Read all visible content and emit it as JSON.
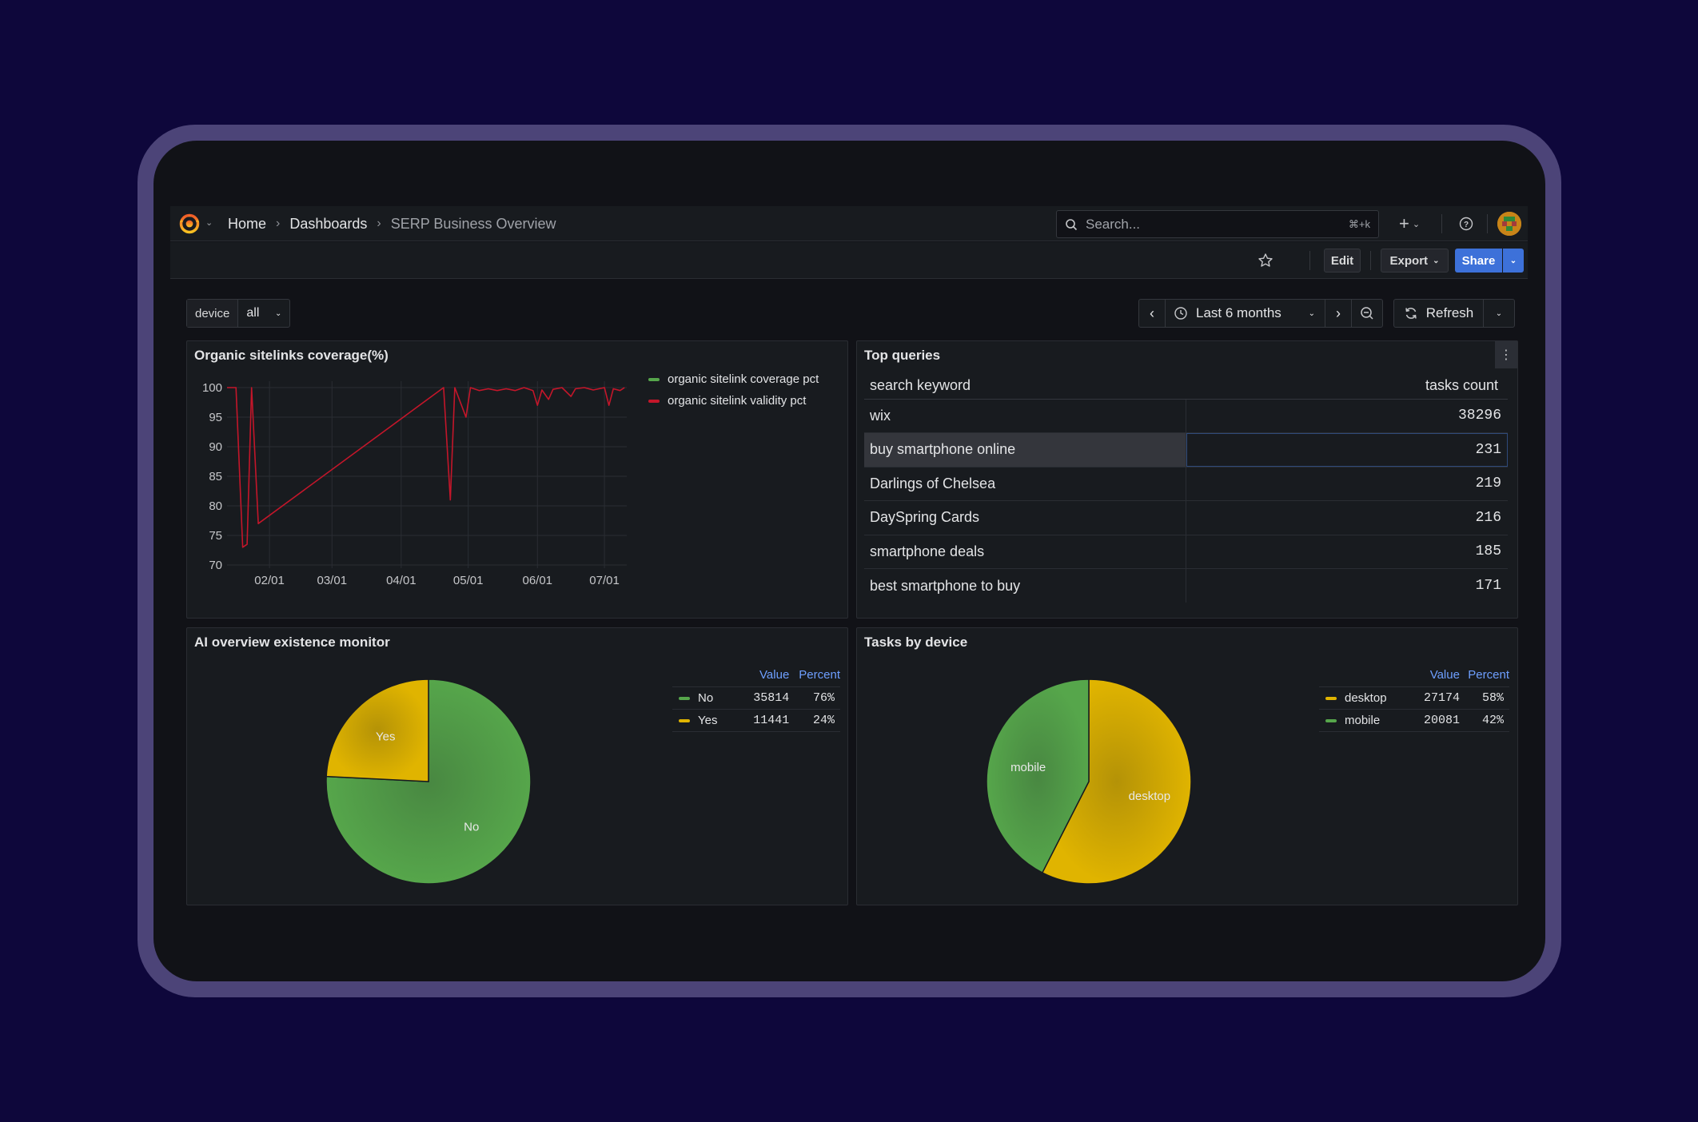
{
  "breadcrumb": {
    "home": "Home",
    "dashboards": "Dashboards",
    "current": "SERP Business Overview"
  },
  "search": {
    "placeholder": "Search...",
    "shortcut": "⌘+k"
  },
  "toolbar": {
    "edit_label": "Edit",
    "export_label": "Export",
    "share_label": "Share"
  },
  "variables": {
    "device_label": "device",
    "device_value": "all"
  },
  "timepicker": {
    "range_label": "Last 6 months",
    "refresh_label": "Refresh"
  },
  "colors": {
    "green": "#56a64b",
    "yellow": "#e0b400",
    "red": "#c4162a",
    "accent": "#3d71d9"
  },
  "panels": {
    "coverage": {
      "title": "Organic sitelinks coverage(%)",
      "legend": [
        "organic sitelink coverage pct",
        "organic sitelink validity pct"
      ]
    },
    "top_queries": {
      "title": "Top queries",
      "columns": [
        "search keyword",
        "tasks count"
      ],
      "rows": [
        {
          "keyword": "wix",
          "count": "38296"
        },
        {
          "keyword": "buy smartphone online",
          "count": "231"
        },
        {
          "keyword": "Darlings of Chelsea",
          "count": "219"
        },
        {
          "keyword": "DaySpring Cards",
          "count": "216"
        },
        {
          "keyword": "smartphone deals",
          "count": "185"
        },
        {
          "keyword": "best smartphone to buy",
          "count": "171"
        }
      ]
    },
    "ai_overview": {
      "title": "AI overview existence monitor",
      "legend_headers": [
        "Value",
        "Percent"
      ],
      "legend": [
        {
          "name": "No",
          "value": "35814",
          "percent": "76%"
        },
        {
          "name": "Yes",
          "value": "11441",
          "percent": "24%"
        }
      ]
    },
    "tasks_device": {
      "title": "Tasks by device",
      "legend_headers": [
        "Value",
        "Percent"
      ],
      "legend": [
        {
          "name": "desktop",
          "value": "27174",
          "percent": "58%"
        },
        {
          "name": "mobile",
          "value": "20081",
          "percent": "42%"
        }
      ]
    }
  },
  "chart_data": [
    {
      "type": "line",
      "title": "Organic sitelinks coverage(%)",
      "x_ticks": [
        "02/01",
        "03/01",
        "04/01",
        "05/01",
        "06/01",
        "07/01"
      ],
      "ylim": [
        70,
        100
      ],
      "y_ticks": [
        100,
        95,
        90,
        85,
        80,
        75,
        70
      ],
      "grid": true,
      "legend_position": "right",
      "series": [
        {
          "name": "organic sitelink coverage pct",
          "color": "#56a64b",
          "points": []
        },
        {
          "name": "organic sitelink validity pct",
          "color": "#c4162a",
          "points": [
            [
              "01/13",
              100
            ],
            [
              "01/17",
              100
            ],
            [
              "01/20",
              73
            ],
            [
              "01/22",
              73.5
            ],
            [
              "01/24",
              100
            ],
            [
              "01/27",
              77
            ],
            [
              "04/20",
              100
            ],
            [
              "04/23",
              81
            ],
            [
              "04/25",
              100
            ],
            [
              "04/30",
              95
            ],
            [
              "05/02",
              100
            ],
            [
              "05/06",
              99.5
            ],
            [
              "05/10",
              99.8
            ],
            [
              "05/14",
              99.5
            ],
            [
              "05/18",
              99.8
            ],
            [
              "05/22",
              99.5
            ],
            [
              "05/26",
              100
            ],
            [
              "05/30",
              99.5
            ],
            [
              "06/01",
              97
            ],
            [
              "06/03",
              99.6
            ],
            [
              "06/06",
              98
            ],
            [
              "06/08",
              99.7
            ],
            [
              "06/12",
              100
            ],
            [
              "06/16",
              98.5
            ],
            [
              "06/18",
              99.8
            ],
            [
              "06/22",
              100
            ],
            [
              "06/26",
              99.6
            ],
            [
              "07/01",
              100
            ],
            [
              "07/03",
              97
            ],
            [
              "07/05",
              99.8
            ],
            [
              "07/08",
              99.5
            ],
            [
              "07/10",
              100
            ]
          ]
        }
      ]
    },
    {
      "type": "pie",
      "title": "AI overview existence monitor",
      "categories": [
        "No",
        "Yes"
      ],
      "values": [
        35814,
        11441
      ],
      "colors": [
        "#56a64b",
        "#e0b400"
      ]
    },
    {
      "type": "pie",
      "title": "Tasks by device",
      "categories": [
        "desktop",
        "mobile"
      ],
      "values": [
        27174,
        20081
      ],
      "colors": [
        "#e0b400",
        "#56a64b"
      ]
    }
  ]
}
